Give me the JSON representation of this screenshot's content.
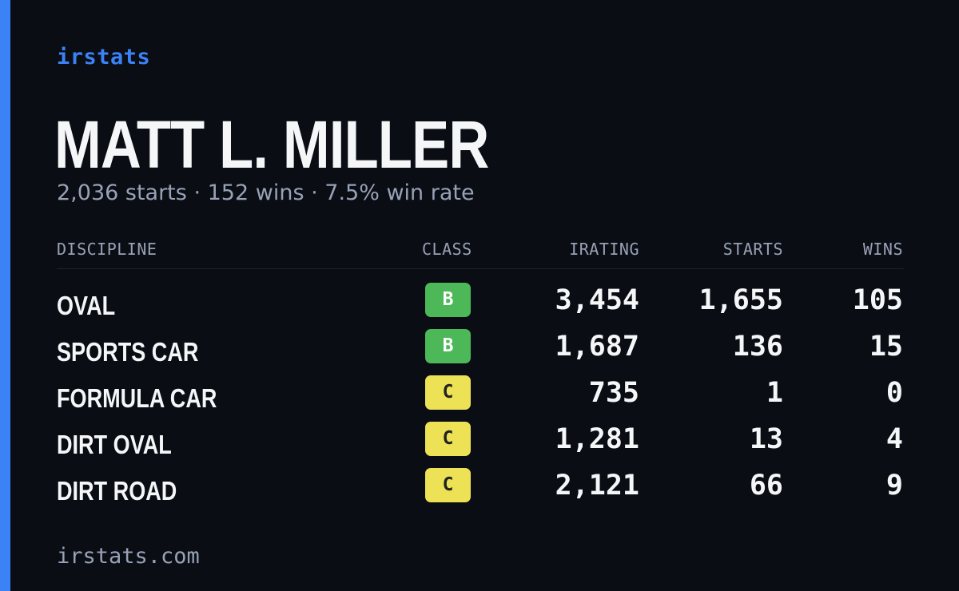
{
  "brand": "irstats",
  "driver": {
    "name": "MATT L. MILLER",
    "starts_text": "2,036 starts",
    "wins_text": "152 wins",
    "win_rate_text": "7.5% win rate",
    "separator": "·"
  },
  "table": {
    "headers": {
      "discipline": "DISCIPLINE",
      "class": "CLASS",
      "irating": "IRATING",
      "starts": "STARTS",
      "wins": "WINS"
    },
    "rows": [
      {
        "discipline": "OVAL",
        "class": "B",
        "irating": "3,454",
        "starts": "1,655",
        "wins": "105"
      },
      {
        "discipline": "SPORTS CAR",
        "class": "B",
        "irating": "1,687",
        "starts": "136",
        "wins": "15"
      },
      {
        "discipline": "FORMULA CAR",
        "class": "C",
        "irating": "735",
        "starts": "1",
        "wins": "0"
      },
      {
        "discipline": "DIRT OVAL",
        "class": "C",
        "irating": "1,281",
        "starts": "13",
        "wins": "4"
      },
      {
        "discipline": "DIRT ROAD",
        "class": "C",
        "irating": "2,121",
        "starts": "66",
        "wins": "9"
      }
    ]
  },
  "footer": "irstats.com",
  "colors": {
    "background": "#0a0d14",
    "accent": "#3b82f6",
    "class_B": "#4cb858",
    "class_C": "#ede255",
    "muted_text": "#98a2b6",
    "primary_text": "#f5f6f8"
  }
}
